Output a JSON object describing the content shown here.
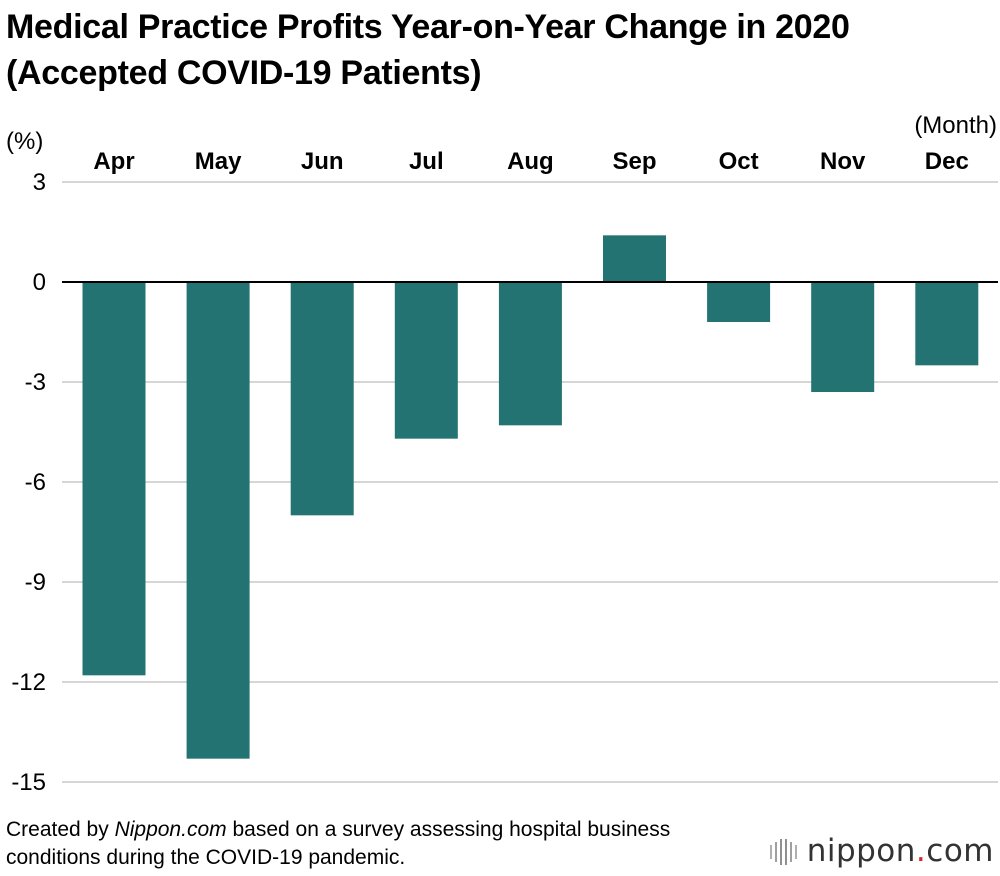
{
  "chart_data": {
    "type": "bar",
    "title_line1": "Medical Practice Profits Year-on-Year Change in 2020",
    "title_line2": "(Accepted COVID-19 Patients)",
    "ylabel": "(%)",
    "xlabel": "(Month)",
    "categories": [
      "Apr",
      "May",
      "Jun",
      "Jul",
      "Aug",
      "Sep",
      "Oct",
      "Nov",
      "Dec"
    ],
    "values": [
      -11.8,
      -14.3,
      -7.0,
      -4.7,
      -4.3,
      1.4,
      -1.2,
      -3.3,
      -2.5
    ],
    "ylim": [
      -15,
      3
    ],
    "yticks": [
      3,
      0,
      -3,
      -6,
      -9,
      -12,
      -15
    ],
    "grid": true,
    "colors": {
      "bar": "#237373",
      "grid": "#c8c8c8",
      "zero_line": "#000000"
    }
  },
  "footer": {
    "prefix": "Created by ",
    "source_name": "Nippon.com",
    "suffix": " based on a survey assessing hospital business conditions during the COVID-19 pandemic."
  },
  "logo": {
    "name": "nippon",
    "dot": ".",
    "tld": "com"
  }
}
